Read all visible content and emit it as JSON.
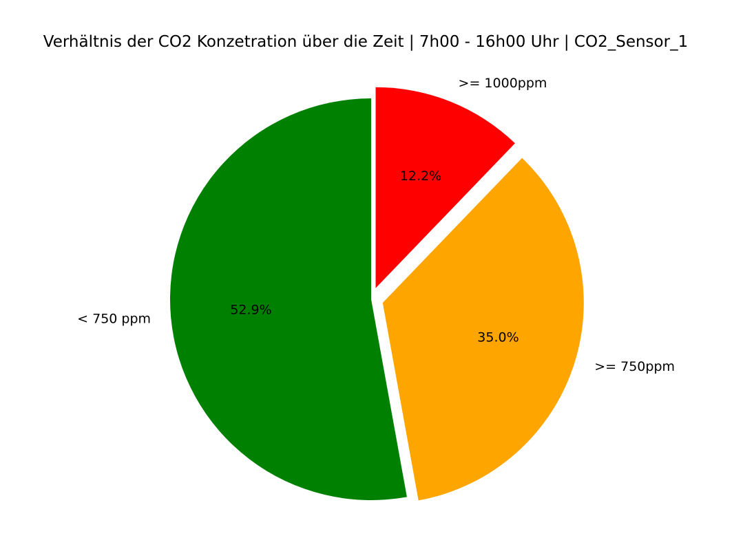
{
  "chart_data": {
    "type": "pie",
    "title": "Verhältnis der CO2 Konzetration über die Zeit | 7h00 - 16h00 Uhr | CO2_Sensor_1",
    "start_angle_deg": 90,
    "direction": "counterclockwise",
    "slices": [
      {
        "label": "< 750 ppm",
        "value": 52.9,
        "pct_label": "52.9%",
        "color": "#008000",
        "exploded": false
      },
      {
        "label": ">= 750ppm",
        "value": 35.0,
        "pct_label": "35.0%",
        "color": "#FFA500",
        "exploded": true
      },
      {
        "label": ">= 1000ppm",
        "value": 12.2,
        "pct_label": "12.2%",
        "color": "#FF0000",
        "exploded": true
      }
    ],
    "legend": "none"
  }
}
